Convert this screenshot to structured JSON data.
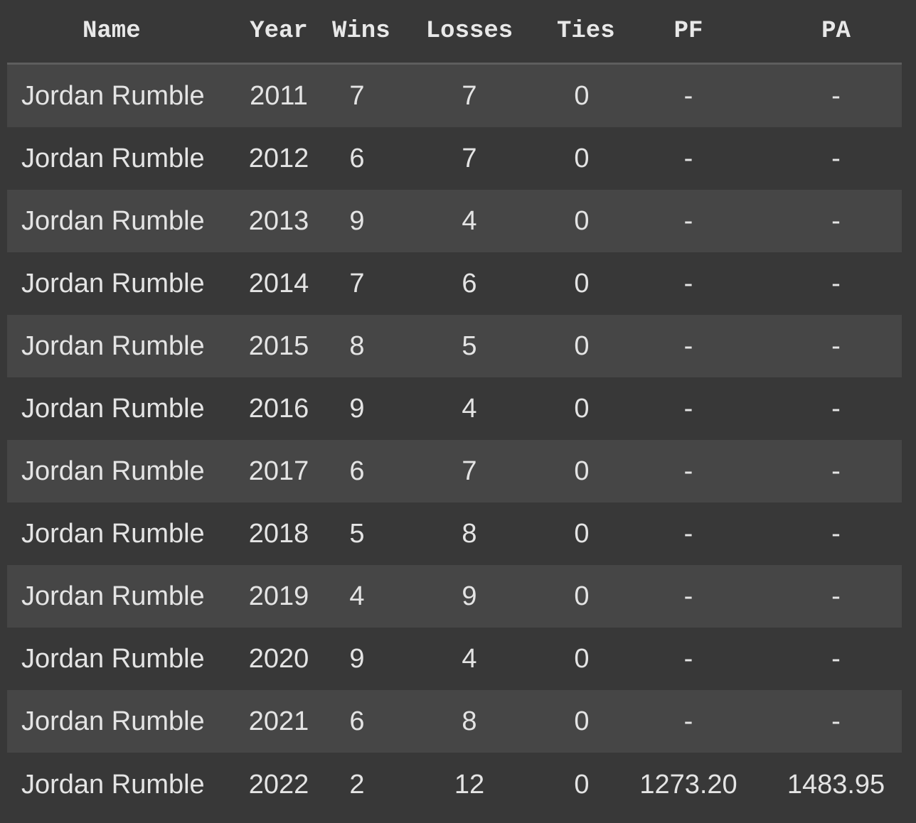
{
  "table": {
    "columns": [
      "Name",
      "Year",
      "Wins",
      "Losses",
      "Ties",
      "PF",
      "PA"
    ],
    "rows": [
      [
        "Jordan Rumble",
        "2011",
        "7",
        "7",
        "0",
        "-",
        "-"
      ],
      [
        "Jordan Rumble",
        "2012",
        "6",
        "7",
        "0",
        "-",
        "-"
      ],
      [
        "Jordan Rumble",
        "2013",
        "9",
        "4",
        "0",
        "-",
        "-"
      ],
      [
        "Jordan Rumble",
        "2014",
        "7",
        "6",
        "0",
        "-",
        "-"
      ],
      [
        "Jordan Rumble",
        "2015",
        "8",
        "5",
        "0",
        "-",
        "-"
      ],
      [
        "Jordan Rumble",
        "2016",
        "9",
        "4",
        "0",
        "-",
        "-"
      ],
      [
        "Jordan Rumble",
        "2017",
        "6",
        "7",
        "0",
        "-",
        "-"
      ],
      [
        "Jordan Rumble",
        "2018",
        "5",
        "8",
        "0",
        "-",
        "-"
      ],
      [
        "Jordan Rumble",
        "2019",
        "4",
        "9",
        "0",
        "-",
        "-"
      ],
      [
        "Jordan Rumble",
        "2020",
        "9",
        "4",
        "0",
        "-",
        "-"
      ],
      [
        "Jordan Rumble",
        "2021",
        "6",
        "8",
        "0",
        "-",
        "-"
      ],
      [
        "Jordan Rumble",
        "2022",
        "2",
        "12",
        "0",
        "1273.20",
        "1483.95"
      ]
    ]
  },
  "colors": {
    "background": "#383838",
    "row_alt": "#464646",
    "text": "#e4e4e4",
    "header_rule": "#5e5e5e"
  }
}
